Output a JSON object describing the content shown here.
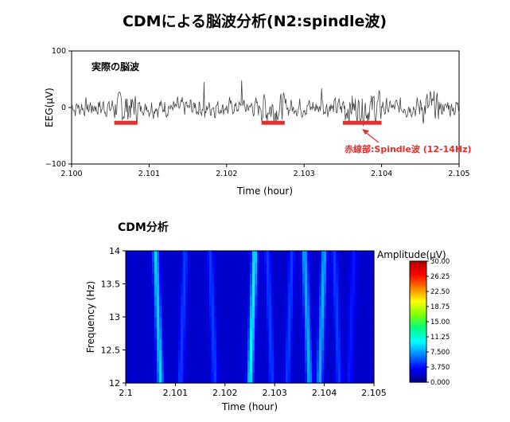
{
  "title": "CDMによる脳波分析(N2:spindle波)",
  "chart_data": [
    {
      "type": "line",
      "panel_label": "実際の脳波",
      "xlabel": "Time (hour)",
      "ylabel": "EEG(μV)",
      "xlim": [
        2.1,
        2.105
      ],
      "ylim": [
        -100,
        100
      ],
      "x_ticks": [
        "2.100",
        "2.101",
        "2.102",
        "2.103",
        "2.104",
        "2.105"
      ],
      "y_ticks": [
        "100",
        "0",
        "−100"
      ],
      "grid": false,
      "series_color": "#444444",
      "spindle_segments": [
        [
          2.10055,
          2.10085
        ],
        [
          2.10245,
          2.10275
        ],
        [
          2.1035,
          2.104
        ]
      ],
      "spindle_color": "#e03030",
      "spindle_level": -27,
      "annotation": {
        "text": "赤線部:Spindle波 (12-14Hz)",
        "points_to": [
          2.1036,
          -40
        ]
      }
    },
    {
      "type": "heatmap",
      "title": "CDM分析",
      "xlabel": "Time (hour)",
      "ylabel": "Frequency (Hz)",
      "xlim": [
        2.1,
        2.105
      ],
      "ylim": [
        12,
        14
      ],
      "x_ticks": [
        "2.1",
        "2.101",
        "2.102",
        "2.103",
        "2.104",
        "2.105"
      ],
      "y_ticks": [
        "14",
        "13.5",
        "13",
        "12.5",
        "12"
      ],
      "colorbar": {
        "label": "Amplitude(μV)",
        "min": 0,
        "max": 30,
        "ticks": [
          "30.00",
          "26.25",
          "22.50",
          "18.75",
          "15.00",
          "11.25",
          "7.500",
          "3.750",
          "0.000"
        ],
        "colors": [
          "#000080",
          "#0000ff",
          "#0080ff",
          "#00ffff",
          "#00ff80",
          "#80ff00",
          "#ffff00",
          "#ff8000",
          "#ff0000",
          "#b00000"
        ]
      },
      "peaks": [
        {
          "time": 2.10065,
          "amplitude": 9
        },
        {
          "time": 2.10115,
          "amplitude": 5
        },
        {
          "time": 2.10175,
          "amplitude": 5
        },
        {
          "time": 2.10255,
          "amplitude": 10
        },
        {
          "time": 2.1029,
          "amplitude": 5
        },
        {
          "time": 2.1033,
          "amplitude": 5
        },
        {
          "time": 2.10365,
          "amplitude": 8
        },
        {
          "time": 2.10395,
          "amplitude": 8
        },
        {
          "time": 2.10425,
          "amplitude": 5
        },
        {
          "time": 2.10455,
          "amplitude": 4
        }
      ],
      "background_amplitude": 2
    }
  ]
}
